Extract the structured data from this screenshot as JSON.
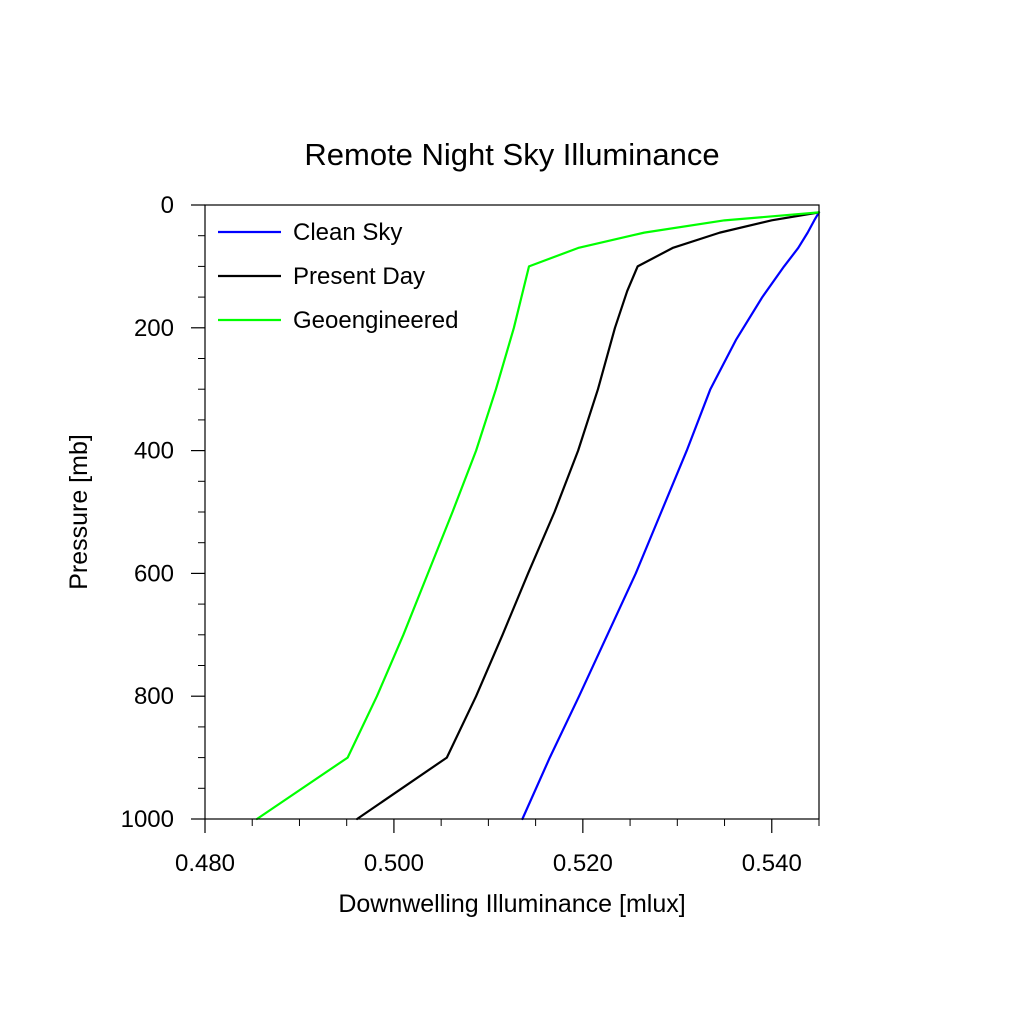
{
  "chart_data": {
    "type": "line",
    "title": "Remote Night Sky Illuminance",
    "xlabel": "Downwelling Illuminance [mlux]",
    "ylabel": "Pressure [mb]",
    "xlim": [
      0.48,
      0.545
    ],
    "ylim": [
      0,
      1000
    ],
    "y_inverted": true,
    "xticks": [
      0.48,
      0.5,
      0.52,
      0.54
    ],
    "xtick_labels": [
      "0.480",
      "0.500",
      "0.520",
      "0.540"
    ],
    "yticks": [
      0,
      200,
      400,
      600,
      800,
      1000
    ],
    "ytick_labels": [
      "0",
      "200",
      "400",
      "600",
      "800",
      "1000"
    ],
    "legend_position": "top-left",
    "series": [
      {
        "name": "Clean Sky",
        "color": "#0000ff",
        "points": [
          [
            0.5136,
            1000
          ],
          [
            0.5165,
            900
          ],
          [
            0.5196,
            800
          ],
          [
            0.5226,
            700
          ],
          [
            0.5256,
            600
          ],
          [
            0.5283,
            500
          ],
          [
            0.531,
            400
          ],
          [
            0.5335,
            300
          ],
          [
            0.5362,
            220
          ],
          [
            0.539,
            150
          ],
          [
            0.5413,
            100
          ],
          [
            0.5428,
            70
          ],
          [
            0.5438,
            45
          ],
          [
            0.5445,
            25
          ],
          [
            0.545,
            12
          ]
        ]
      },
      {
        "name": "Present Day",
        "color": "#000000",
        "points": [
          [
            0.4961,
            1000
          ],
          [
            0.5056,
            900
          ],
          [
            0.5087,
            800
          ],
          [
            0.5115,
            700
          ],
          [
            0.5142,
            600
          ],
          [
            0.517,
            500
          ],
          [
            0.5195,
            400
          ],
          [
            0.5216,
            300
          ],
          [
            0.5234,
            200
          ],
          [
            0.5247,
            140
          ],
          [
            0.5258,
            100
          ],
          [
            0.5295,
            70
          ],
          [
            0.5345,
            45
          ],
          [
            0.54,
            25
          ],
          [
            0.545,
            12
          ]
        ]
      },
      {
        "name": "Geoengineered",
        "color": "#00ff00",
        "points": [
          [
            0.4855,
            1000
          ],
          [
            0.4951,
            900
          ],
          [
            0.4982,
            800
          ],
          [
            0.501,
            700
          ],
          [
            0.5036,
            600
          ],
          [
            0.5062,
            500
          ],
          [
            0.5087,
            400
          ],
          [
            0.5108,
            300
          ],
          [
            0.5127,
            200
          ],
          [
            0.5143,
            100
          ],
          [
            0.5195,
            70
          ],
          [
            0.5265,
            45
          ],
          [
            0.535,
            25
          ],
          [
            0.545,
            12
          ]
        ]
      }
    ]
  }
}
